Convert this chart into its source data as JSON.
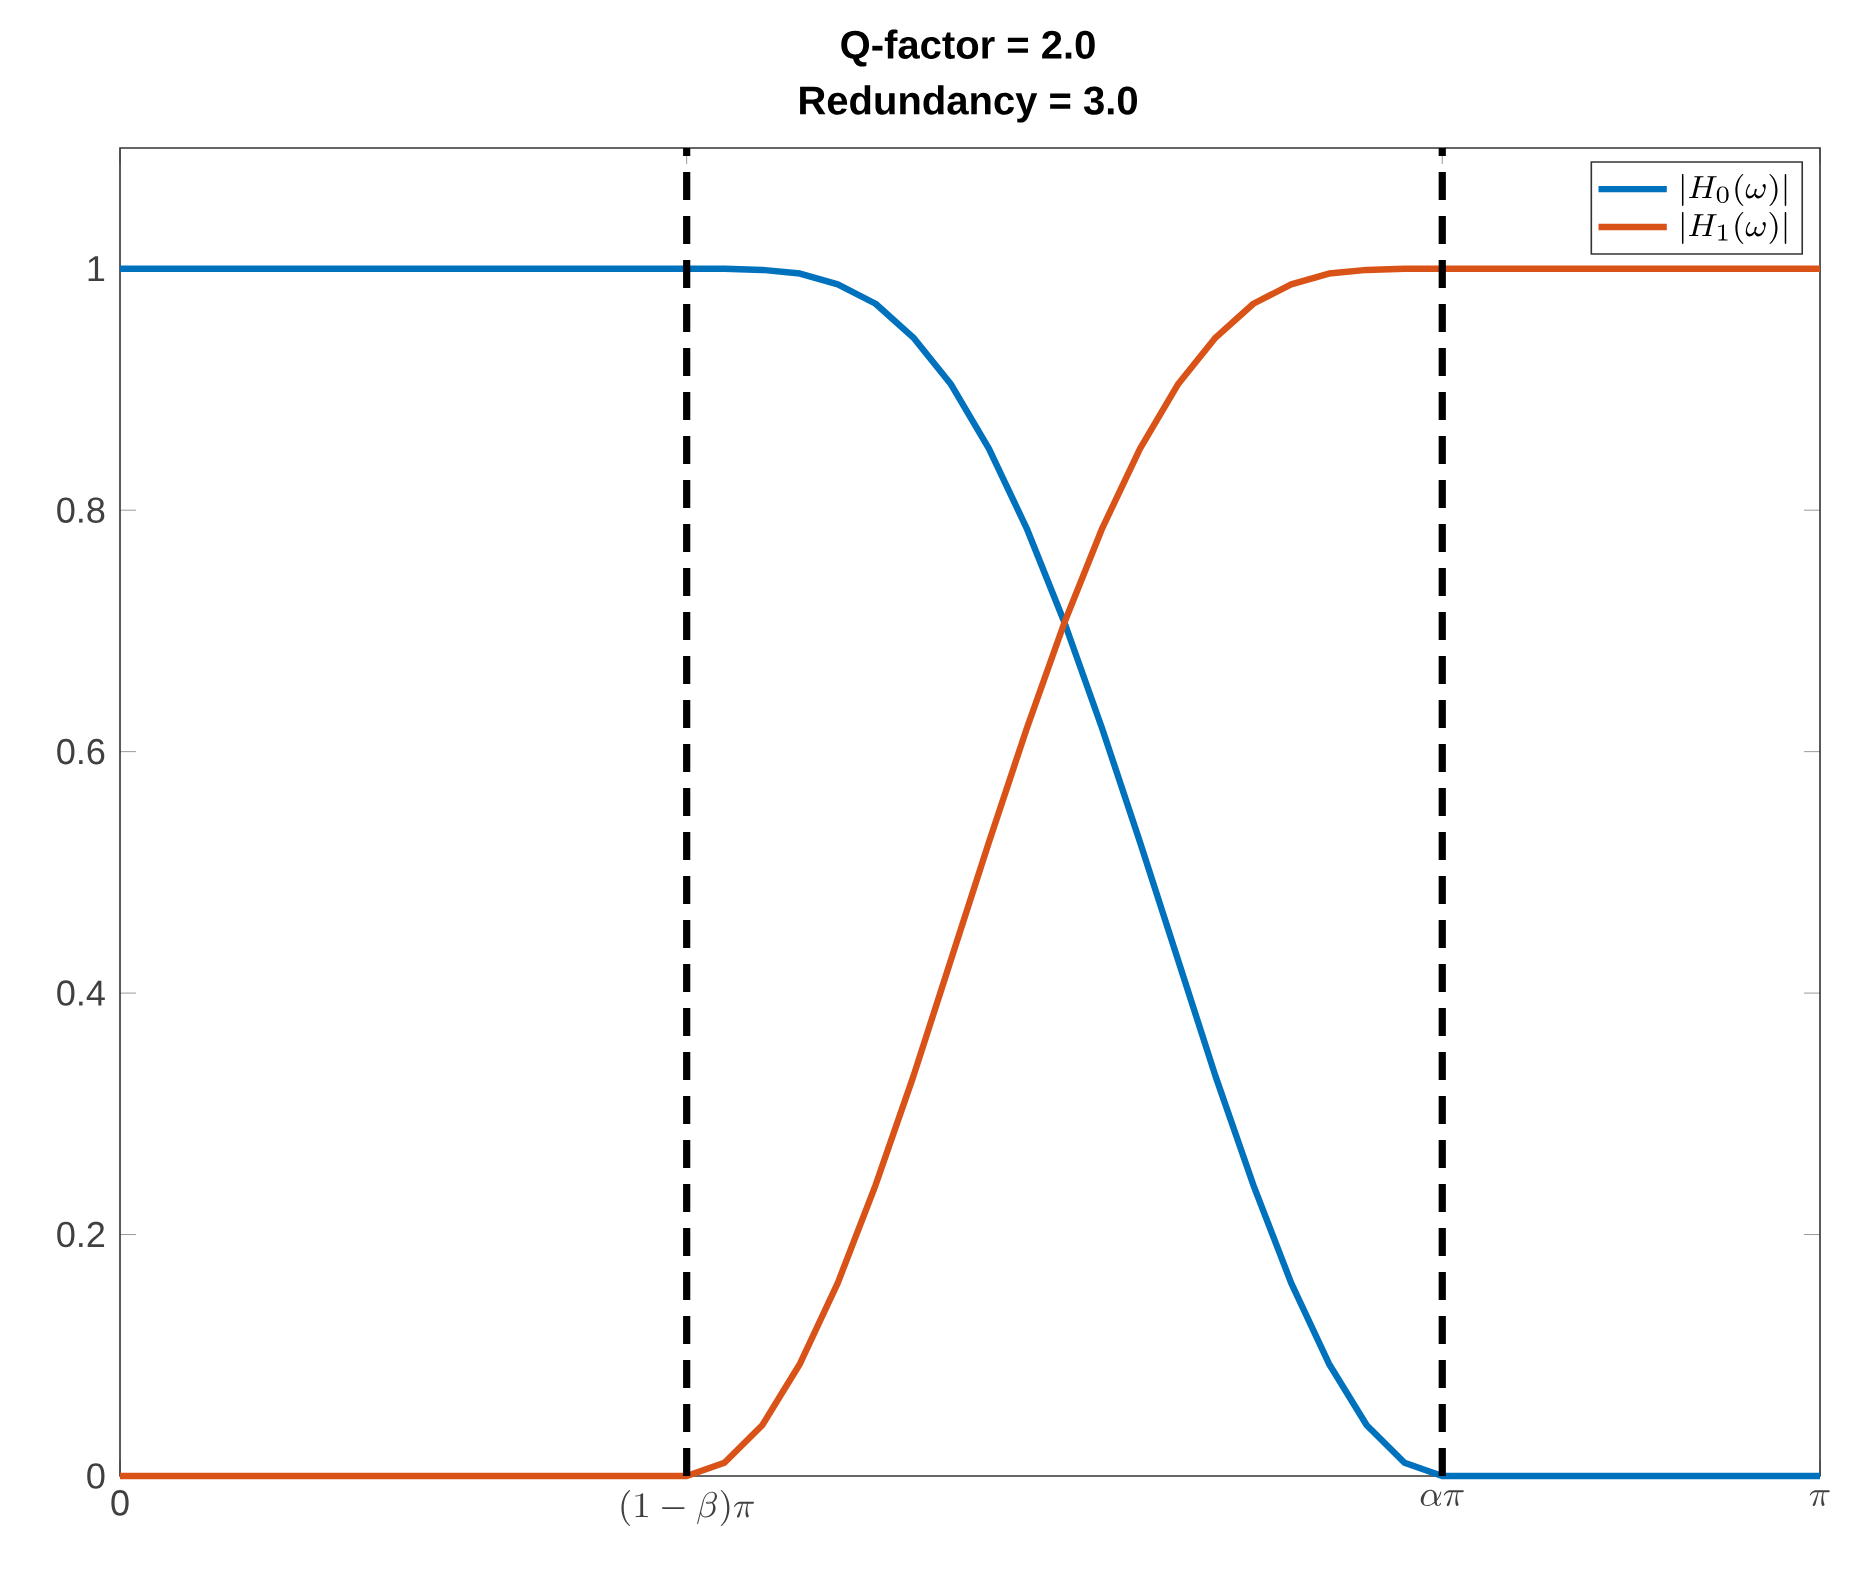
{
  "chart_data": {
    "type": "line",
    "title": "Q-factor = 2.0",
    "subtitle": "Redundancy = 3.0",
    "x": [
      0,
      1.0472,
      1.117,
      1.1868,
      1.2566,
      1.3265,
      1.3963,
      1.4661,
      1.5359,
      1.6057,
      1.6755,
      1.7453,
      1.8151,
      1.885,
      1.9548,
      2.0246,
      2.0944,
      2.1642,
      2.2341,
      2.3039,
      2.3737,
      2.4435,
      3.1416
    ],
    "series": [
      {
        "name": "|H_0(\\omega)|",
        "color": "#0072bd",
        "values": [
          1,
          1,
          1,
          0.999,
          0.996,
          0.987,
          0.971,
          0.943,
          0.904,
          0.851,
          0.785,
          0.707,
          0.619,
          0.525,
          0.428,
          0.331,
          0.241,
          0.16,
          0.093,
          0.042,
          0.011,
          0,
          0
        ]
      },
      {
        "name": "|H_1(\\omega)|",
        "color": "#d95319",
        "values": [
          0,
          0,
          0.011,
          0.042,
          0.093,
          0.16,
          0.241,
          0.331,
          0.428,
          0.525,
          0.619,
          0.707,
          0.785,
          0.851,
          0.904,
          0.943,
          0.971,
          0.987,
          0.996,
          0.999,
          1,
          1,
          1
        ]
      }
    ],
    "xlim": [
      0,
      3.1416
    ],
    "ylim": [
      0,
      1.1
    ],
    "xticks": [
      0,
      {
        "value": 1.0472,
        "label": "(1-\\beta)\\pi"
      },
      {
        "value": 2.4435,
        "label": "\\alpha\\pi"
      },
      {
        "value": 3.1416,
        "label": "\\pi"
      }
    ],
    "yticks": [
      0,
      0.2,
      0.4,
      0.6,
      0.8,
      1
    ],
    "ref_lines": [
      {
        "axis": "x",
        "value": 1.0472,
        "color": "#000000",
        "line_style": "dashed"
      },
      {
        "axis": "x",
        "value": 2.4435,
        "color": "#000000",
        "line_style": "dashed"
      }
    ],
    "legend": "top right",
    "grid": false,
    "marker": "none",
    "line_style": "solid"
  }
}
